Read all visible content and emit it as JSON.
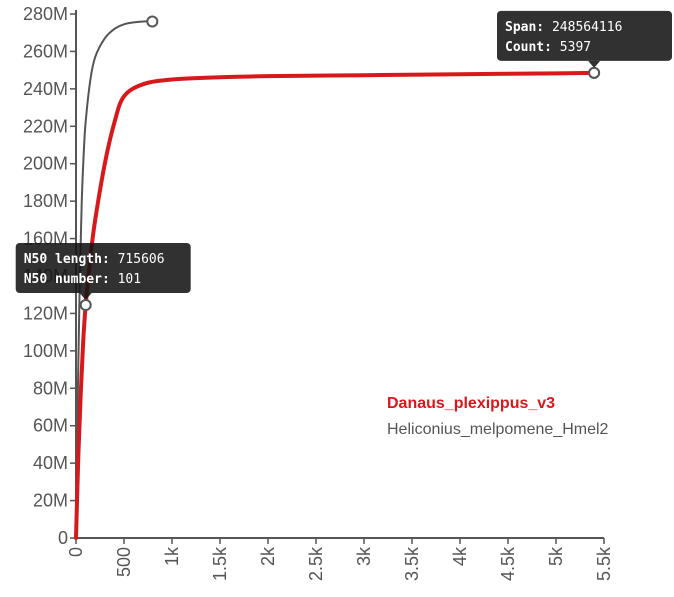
{
  "chart_data": {
    "type": "line",
    "title": "",
    "xlabel": "",
    "ylabel": "",
    "xlim": [
      0,
      5500
    ],
    "ylim": [
      0,
      280000000
    ],
    "x_ticks": [
      0,
      500,
      1000,
      1500,
      2000,
      2500,
      3000,
      3500,
      4000,
      4500,
      5000,
      5500
    ],
    "x_tick_labels": [
      "0",
      "500",
      "1k",
      "1.5k",
      "2k",
      "2.5k",
      "3k",
      "3.5k",
      "4k",
      "4.5k",
      "5k",
      "5.5k"
    ],
    "y_ticks": [
      0,
      20000000,
      40000000,
      60000000,
      80000000,
      100000000,
      120000000,
      140000000,
      160000000,
      180000000,
      200000000,
      220000000,
      240000000,
      260000000,
      280000000
    ],
    "y_tick_labels": [
      "0",
      "20M",
      "40M",
      "60M",
      "80M",
      "100M",
      "120M",
      "140M",
      "160M",
      "180M",
      "200M",
      "220M",
      "240M",
      "260M",
      "280M"
    ],
    "grid": false,
    "legend": "bottom-right",
    "series": [
      {
        "name": "Danaus_plexippus_v3",
        "color": "#d7191c",
        "emphasis": true,
        "x": [
          0,
          25,
          50,
          75,
          101,
          150,
          200,
          300,
          400,
          500,
          700,
          1000,
          1500,
          2000,
          3000,
          4000,
          5000,
          5397
        ],
        "y": [
          0,
          45000000,
          78000000,
          105000000,
          124500000,
          150000000,
          170000000,
          200000000,
          222000000,
          236000000,
          242500000,
          245000000,
          246200000,
          246800000,
          247300000,
          247800000,
          248300000,
          248564116
        ],
        "endpoint": {
          "x": 5397,
          "y": 248564116
        }
      },
      {
        "name": "Heliconius_melpomene_Hmel2",
        "color": "#555555",
        "emphasis": false,
        "x": [
          0,
          20,
          40,
          60,
          80,
          100,
          150,
          200,
          300,
          400,
          500,
          600,
          700,
          795
        ],
        "y": [
          0,
          80000000,
          140000000,
          180000000,
          205000000,
          222000000,
          245000000,
          257000000,
          267000000,
          272000000,
          274500000,
          275500000,
          276000000,
          276000000
        ],
        "endpoint": {
          "x": 795,
          "y": 276000000
        }
      }
    ],
    "annotations": [
      {
        "series": 0,
        "x": 101,
        "y": 124500000,
        "lines": [
          {
            "key": "N50 length",
            "value": "715606"
          },
          {
            "key": "N50 number",
            "value": "101"
          }
        ]
      },
      {
        "series": 0,
        "x": 5397,
        "y": 248564116,
        "lines": [
          {
            "key": "Span",
            "value": "248564116"
          },
          {
            "key": "Count",
            "value": "5397"
          }
        ]
      }
    ]
  }
}
